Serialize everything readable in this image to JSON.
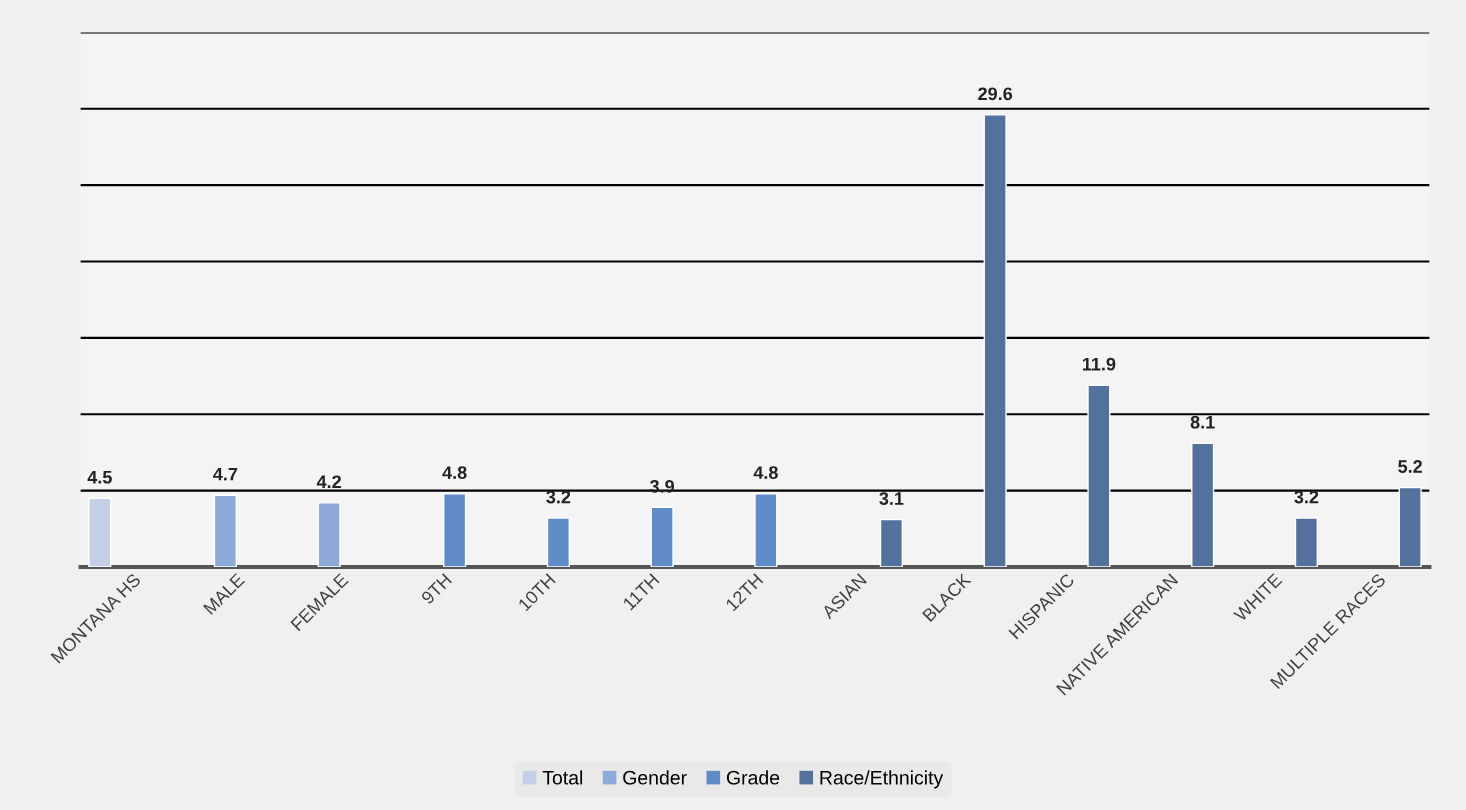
{
  "chart_data": {
    "type": "bar",
    "categories": [
      "MONTANA HS",
      "MALE",
      "FEMALE",
      "9TH",
      "10TH",
      "11TH",
      "12TH",
      "ASIAN",
      "BLACK",
      "HISPANIC",
      "NATIVE AMERICAN",
      "WHITE",
      "MULTIPLE RACES"
    ],
    "series": [
      {
        "name": "Total",
        "color": "#c3cfe6",
        "values": [
          4.5,
          null,
          null,
          null,
          null,
          null,
          null,
          null,
          null,
          null,
          null,
          null,
          null
        ]
      },
      {
        "name": "Gender",
        "color": "#8eaad8",
        "values": [
          null,
          4.7,
          4.2,
          null,
          null,
          null,
          null,
          null,
          null,
          null,
          null,
          null,
          null
        ]
      },
      {
        "name": "Grade",
        "color": "#5f8bc6",
        "values": [
          null,
          null,
          null,
          4.8,
          3.2,
          3.9,
          4.8,
          null,
          null,
          null,
          null,
          null,
          null
        ]
      },
      {
        "name": "Race/Ethnicity",
        "color": "#52719c",
        "values": [
          null,
          null,
          null,
          null,
          null,
          null,
          null,
          3.1,
          29.6,
          11.9,
          8.1,
          3.2,
          5.2
        ]
      }
    ],
    "ylim": [
      0,
      35
    ],
    "yticks": [
      {
        "value": 0,
        "label": null
      },
      {
        "value": 5,
        "label": null
      },
      {
        "value": 10,
        "label": null
      },
      {
        "value": 15,
        "label": null
      },
      {
        "value": 20,
        "label": null
      },
      {
        "value": 25,
        "label": null
      },
      {
        "value": 30,
        "label": null
      },
      {
        "value": 35,
        "label": null
      }
    ],
    "grid": "y",
    "legend": "bottom",
    "data_labels": true
  }
}
